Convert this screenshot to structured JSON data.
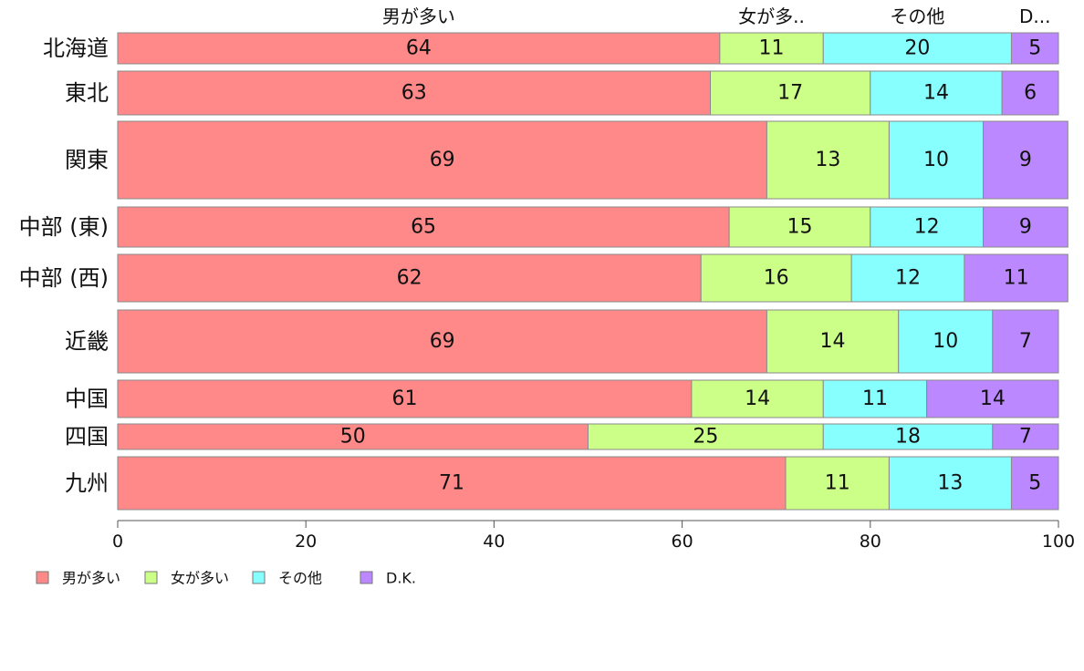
{
  "chart_data": {
    "type": "bar",
    "orientation": "horizontal",
    "stacked": true,
    "categories": [
      "北海道",
      "東北",
      "関東",
      "中部 (東)",
      "中部 (西)",
      "近畿",
      "中国",
      "四国",
      "九州"
    ],
    "column_headers": [
      "男が多い",
      "女が多..",
      "その他",
      "D..."
    ],
    "series": [
      {
        "name": "男が多い",
        "color": "#ff8888",
        "values": [
          64,
          63,
          69,
          65,
          62,
          69,
          61,
          50,
          71
        ]
      },
      {
        "name": "女が多い",
        "color": "#ccff88",
        "values": [
          11,
          17,
          13,
          15,
          16,
          14,
          14,
          25,
          11
        ]
      },
      {
        "name": "その他",
        "color": "#88ffff",
        "values": [
          20,
          14,
          10,
          12,
          12,
          10,
          11,
          18,
          13
        ]
      },
      {
        "name": "D.K.",
        "color": "#bb88ff",
        "values": [
          5,
          6,
          9,
          9,
          11,
          7,
          14,
          7,
          5
        ]
      }
    ],
    "xlim": [
      0,
      100
    ],
    "xticks": [
      "0",
      "20",
      "40",
      "60",
      "80",
      "100"
    ],
    "legend_position": "bottom-left",
    "grid": false
  }
}
